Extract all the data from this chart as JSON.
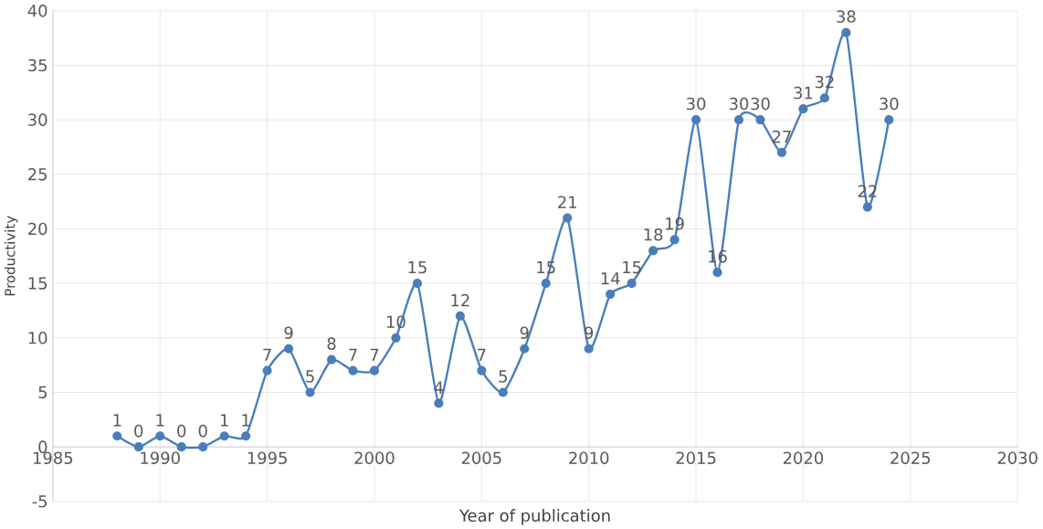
{
  "chart_data": {
    "type": "line",
    "xlabel": "Year of publication",
    "ylabel": "Productivity",
    "x": [
      1988,
      1989,
      1990,
      1991,
      1992,
      1993,
      1994,
      1995,
      1996,
      1997,
      1998,
      1999,
      2000,
      2001,
      2002,
      2003,
      2004,
      2005,
      2006,
      2007,
      2008,
      2009,
      2010,
      2011,
      2012,
      2013,
      2014,
      2015,
      2016,
      2017,
      2018,
      2019,
      2020,
      2021,
      2022,
      2023,
      2024
    ],
    "series": [
      {
        "color": "#4a7ebb",
        "values": [
          1,
          0,
          1,
          0,
          0,
          1,
          1,
          7,
          9,
          5,
          8,
          7,
          7,
          10,
          15,
          4,
          12,
          7,
          5,
          9,
          15,
          21,
          9,
          14,
          15,
          18,
          19,
          30,
          16,
          30,
          30,
          27,
          31,
          32,
          38,
          22,
          30
        ]
      }
    ],
    "xlim": [
      1985,
      2030
    ],
    "ylim": [
      -5,
      40
    ],
    "xticks": [
      1985,
      1990,
      1995,
      2000,
      2005,
      2010,
      2015,
      2020,
      2025,
      2030
    ],
    "yticks": [
      -5,
      0,
      5,
      10,
      15,
      20,
      25,
      30,
      35,
      40
    ],
    "grid": true,
    "marker": "circle",
    "line_style": "solid",
    "data_labels": true
  }
}
